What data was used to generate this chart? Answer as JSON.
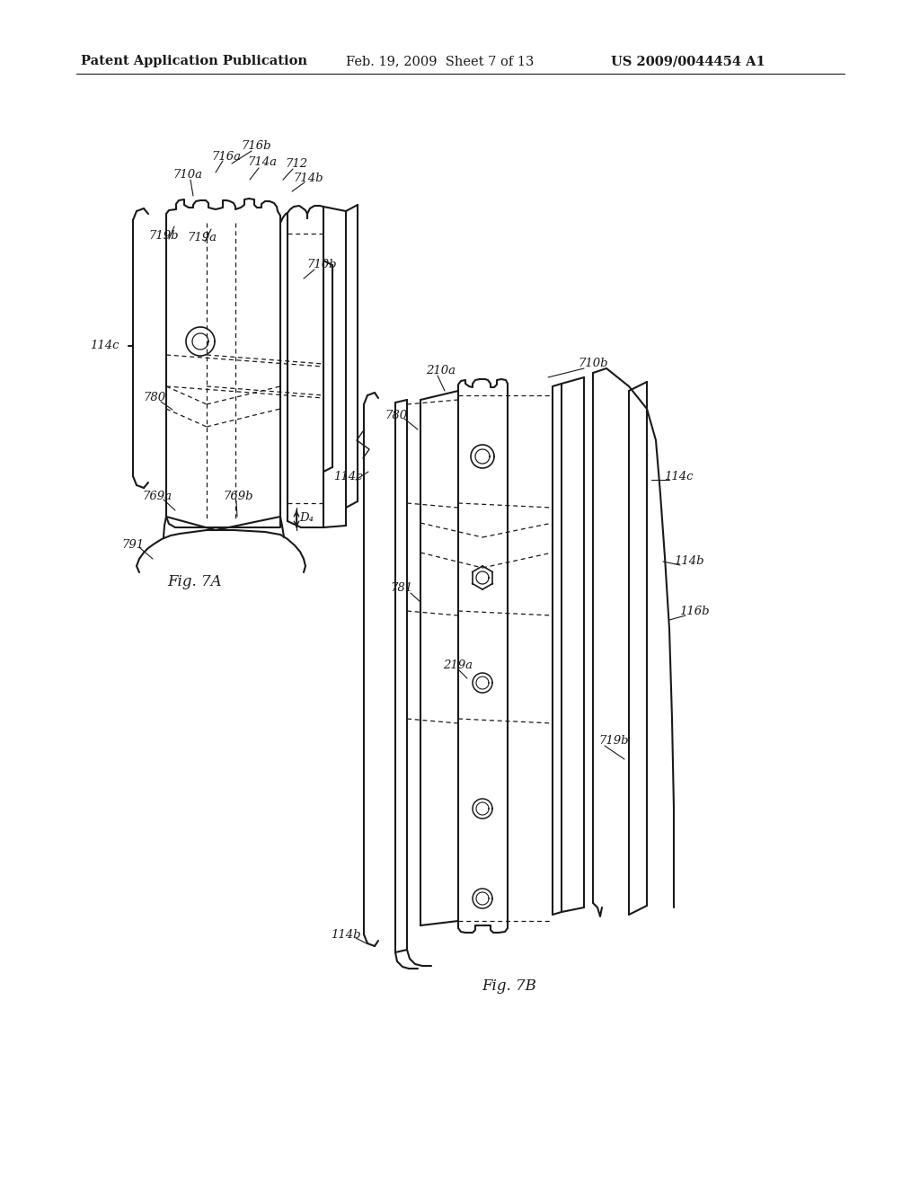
{
  "bg_color": "#ffffff",
  "header_left": "Patent Application Publication",
  "header_center": "Feb. 19, 2009  Sheet 7 of 13",
  "header_right": "US 2009/0044454 A1",
  "fig7a_label": "Fig. 7A",
  "fig7b_label": "Fig. 7B",
  "line_color": "#1a1a1a",
  "text_color": "#1a1a1a",
  "label_fontsize": 9.5,
  "header_fontsize": 10.5
}
